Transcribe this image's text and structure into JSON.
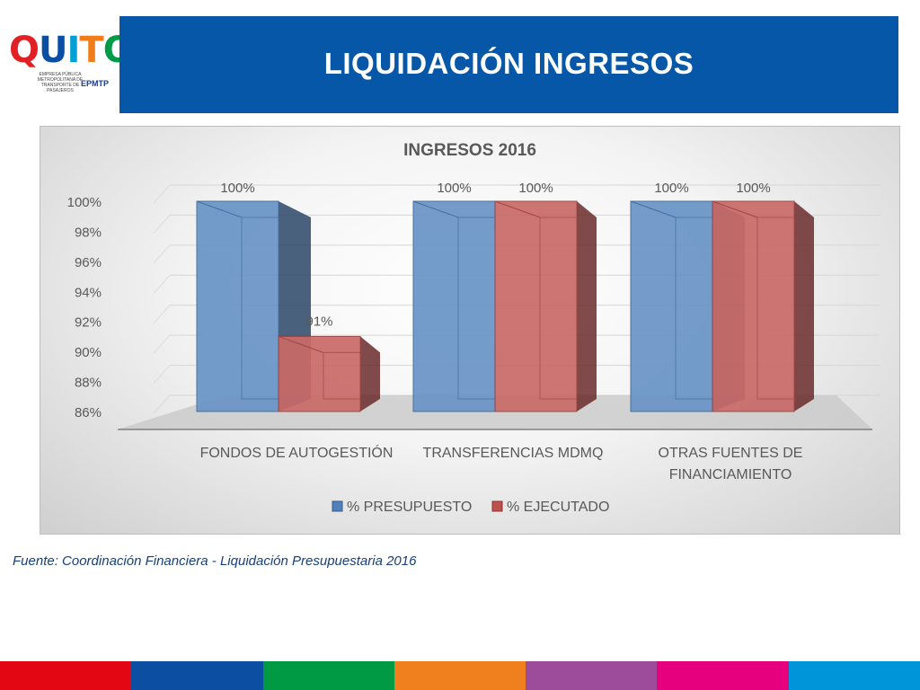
{
  "header": {
    "title": "LIQUIDACIÓN INGRESOS"
  },
  "logo": {
    "word": "QUITO",
    "subtitle": "EMPRESA PÚBLICA METROPOLITANA DE TRANSPORTE DE PASAJEROS",
    "abbr": "EPMTP",
    "letter_colors": [
      "#e31f26",
      "#0a4fa3",
      "#00a0d6",
      "#f07d1a",
      "#009b48"
    ]
  },
  "chart_data": {
    "type": "bar",
    "title": "INGRESOS 2016",
    "categories": [
      "FONDOS DE AUTOGESTIÓN",
      "TRANSFERENCIAS MDMQ",
      "OTRAS FUENTES DE FINANCIAMIENTO"
    ],
    "category_lines": [
      [
        "FONDOS DE AUTOGESTIÓN"
      ],
      [
        "TRANSFERENCIAS MDMQ"
      ],
      [
        "OTRAS FUENTES DE",
        "FINANCIAMIENTO"
      ]
    ],
    "series": [
      {
        "name": "% PRESUPUESTO",
        "values": [
          100,
          100,
          100
        ],
        "labels": [
          "100%",
          "100%",
          "100%"
        ],
        "color": "#4f81bd"
      },
      {
        "name": "% EJECUTADO",
        "values": [
          91,
          100,
          100
        ],
        "labels": [
          "91%",
          "100%",
          "100%"
        ],
        "color": "#c0504d"
      }
    ],
    "ylim": [
      86,
      100
    ],
    "yticks": [
      86,
      88,
      90,
      92,
      94,
      96,
      98,
      100
    ],
    "ytick_labels": [
      "86%",
      "88%",
      "90%",
      "92%",
      "94%",
      "96%",
      "98%",
      "100%"
    ],
    "grid": true,
    "legend_position": "bottom"
  },
  "footer": {
    "source": "Fuente: Coordinación Financiera - Liquidación Presupuestaria  2016",
    "strip_colors": [
      "#e30613",
      "#0b4ea2",
      "#009a44",
      "#f07f1d",
      "#9d4b9b",
      "#e6007e",
      "#0095d9"
    ]
  }
}
